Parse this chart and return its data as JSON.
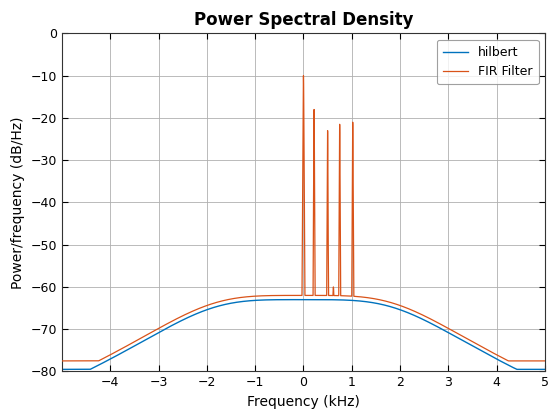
{
  "title": "Power Spectral Density",
  "xlabel": "Frequency (kHz)",
  "ylabel": "Power/frequency (dB/Hz)",
  "xlim": [
    -5,
    5
  ],
  "ylim": [
    -80,
    0
  ],
  "xticks": [
    -4,
    -3,
    -2,
    -1,
    0,
    1,
    2,
    3,
    4,
    5
  ],
  "yticks": [
    0,
    -10,
    -20,
    -30,
    -40,
    -50,
    -60,
    -70,
    -80
  ],
  "hilbert_color": "#0072BD",
  "fir_color": "#D95319",
  "legend_labels": [
    "hilbert",
    "FIR Filter"
  ],
  "background_color": "#ffffff",
  "grid_color": "#b0b0b0"
}
